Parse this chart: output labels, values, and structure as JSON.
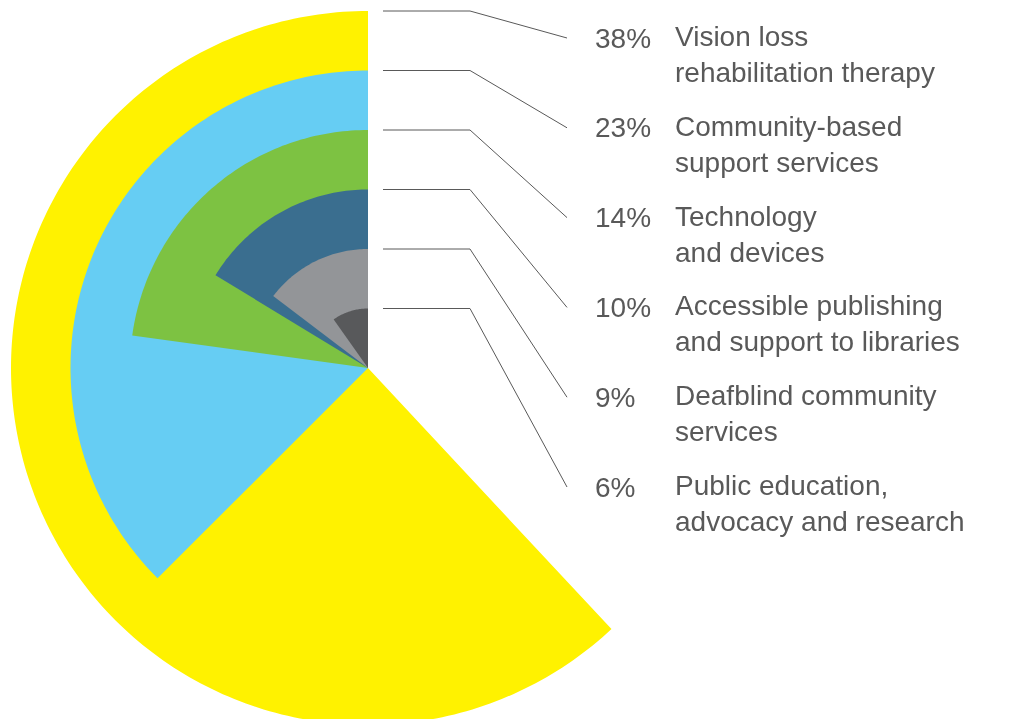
{
  "chart_data": {
    "type": "other",
    "categories": [
      "Vision loss\nrehabilitation therapy",
      "Community-based\nsupport services",
      "Technology\nand devices",
      "Accessible publishing\nand support to libraries",
      "Deafblind community\nservices",
      "Public education,\nadvocacy and research"
    ],
    "values": [
      38,
      23,
      14,
      10,
      9,
      6
    ],
    "value_labels": [
      "38%",
      "23%",
      "14%",
      "10%",
      "9%",
      "6%"
    ],
    "colors": [
      "#fff200",
      "#66cdf3",
      "#7dc242",
      "#3a6e8f",
      "#939598",
      "#58595b"
    ]
  }
}
